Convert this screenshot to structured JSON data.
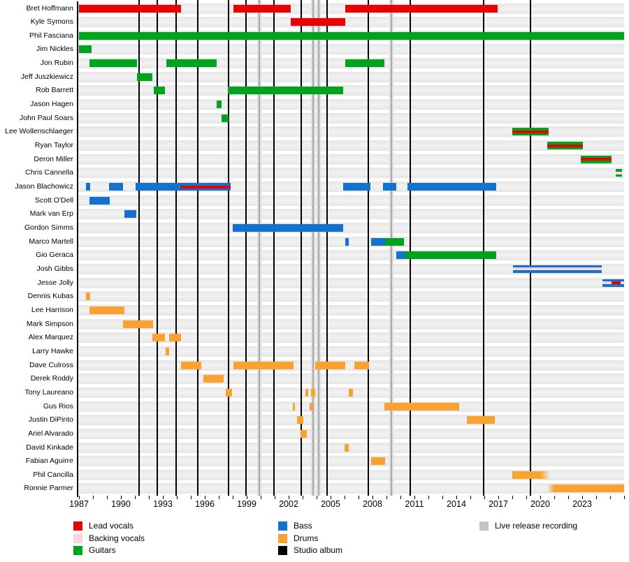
{
  "chart_data": {
    "type": "timeline",
    "description": "Band line-up timeline: rows are members, colored bars are active periods per role, vertical lines mark releases",
    "x_axis": {
      "min": 1987,
      "max": 2026,
      "tick_step": 1,
      "labels": [
        "1987",
        "1990",
        "1993",
        "1996",
        "1999",
        "2002",
        "2005",
        "2008",
        "2011",
        "2014",
        "2017",
        "2020",
        "2023"
      ],
      "label_years": [
        1987,
        1990,
        1993,
        1996,
        1999,
        2002,
        2005,
        2008,
        2011,
        2014,
        2017,
        2020,
        2023
      ]
    },
    "colors": {
      "lead_vocals": "#ea0000",
      "backing_vocals": "#f7d5da",
      "guitars": "#00a41c",
      "bass": "#1371cf",
      "drums": "#f9a231",
      "studio_album": "#000000",
      "live_release": "#c5c5c5",
      "row_stripe": "#ebebeb"
    },
    "studio_album_lines": [
      1991.3,
      1992.6,
      1993.95,
      1995.5,
      1997.7,
      1998.95,
      2000.95,
      2002.9,
      2004.75,
      2007.7,
      2010.7,
      2015.95,
      2019.3
    ],
    "live_release_lines": [
      1999.9,
      2003.75,
      2004.15,
      2009.35
    ],
    "members": [
      {
        "name": "Bret Hoffmann",
        "bars": [
          {
            "role": "lead_vocals",
            "start": 1987.0,
            "end": 1994.3
          },
          {
            "role": "lead_vocals",
            "start": 1998.05,
            "end": 2002.15
          },
          {
            "role": "lead_vocals",
            "start": 2006.05,
            "end": 2016.95
          }
        ]
      },
      {
        "name": "Kyle Symons",
        "bars": [
          {
            "role": "lead_vocals",
            "start": 2002.15,
            "end": 2006.05
          }
        ]
      },
      {
        "name": "Phil Fasciana",
        "bars": [
          {
            "role": "guitars",
            "start": 1987.0,
            "end": 2026.0
          }
        ]
      },
      {
        "name": "Jim Nickles",
        "bars": [
          {
            "role": "guitars",
            "start": 1987.0,
            "end": 1987.9
          }
        ]
      },
      {
        "name": "Jon Rubin",
        "bars": [
          {
            "role": "guitars",
            "start": 1987.75,
            "end": 1991.15
          },
          {
            "role": "guitars",
            "start": 1993.25,
            "end": 1996.85
          },
          {
            "role": "guitars",
            "start": 2006.05,
            "end": 2008.85
          }
        ]
      },
      {
        "name": "Jeff Juszkiewicz",
        "bars": [
          {
            "role": "guitars",
            "start": 1991.15,
            "end": 1992.25
          }
        ]
      },
      {
        "name": "Rob Barrett",
        "bars": [
          {
            "role": "guitars",
            "start": 1992.35,
            "end": 1993.15
          },
          {
            "role": "guitars",
            "start": 1997.65,
            "end": 2005.9
          }
        ]
      },
      {
        "name": "Jason Hagen",
        "bars": [
          {
            "role": "guitars",
            "start": 1996.85,
            "end": 1997.2
          }
        ]
      },
      {
        "name": "John Paul Soars",
        "bars": [
          {
            "role": "guitars",
            "start": 1997.2,
            "end": 1997.7
          }
        ]
      },
      {
        "name": "Lee Wollenschlaeger",
        "bars": [
          {
            "role": "guitars",
            "stripe": "lead_vocals",
            "start": 2018.0,
            "end": 2020.6
          }
        ]
      },
      {
        "name": "Ryan Taylor",
        "bars": [
          {
            "role": "guitars",
            "stripe": "lead_vocals",
            "start": 2020.5,
            "end": 2023.05
          }
        ]
      },
      {
        "name": "Deron Miller",
        "bars": [
          {
            "role": "guitars",
            "stripe": "lead_vocals",
            "start": 2022.9,
            "end": 2025.1
          }
        ]
      },
      {
        "name": "Chris Cannella",
        "bars": [
          {
            "role": "guitars",
            "stripe": "backing_vocals",
            "start": 2025.4,
            "end": 2025.85
          }
        ]
      },
      {
        "name": "Jason Blachowicz",
        "bars": [
          {
            "role": "bass",
            "start": 1987.5,
            "end": 1987.8
          },
          {
            "role": "bass",
            "start": 1989.15,
            "end": 1990.15
          },
          {
            "role": "bass",
            "stripe": "lead_vocals",
            "stripe_start": 1994.25,
            "stripe_end": 1997.85,
            "start": 1991.05,
            "end": 1997.85
          },
          {
            "role": "bass",
            "start": 2005.9,
            "end": 2007.85
          },
          {
            "role": "bass",
            "start": 2008.75,
            "end": 2009.7
          },
          {
            "role": "bass",
            "start": 2010.5,
            "end": 2016.85
          }
        ]
      },
      {
        "name": "Scott O'Dell",
        "bars": [
          {
            "role": "bass",
            "start": 1987.75,
            "end": 1989.2
          }
        ]
      },
      {
        "name": "Mark van Erp",
        "bars": [
          {
            "role": "bass",
            "start": 1990.25,
            "end": 1991.1
          }
        ]
      },
      {
        "name": "Gordon Simms",
        "bars": [
          {
            "role": "bass",
            "start": 1998.0,
            "end": 2005.9
          }
        ]
      },
      {
        "name": "Marco Martell",
        "bars": [
          {
            "role": "bass",
            "start": 2006.05,
            "end": 2006.3
          },
          {
            "role": "bass",
            "start": 2007.9,
            "end": 2008.9
          },
          {
            "role": "guitars",
            "start": 2008.9,
            "end": 2010.25
          }
        ]
      },
      {
        "name": "Gio Geraca",
        "bars": [
          {
            "role": "bass",
            "start": 2009.7,
            "end": 2010.35
          },
          {
            "role": "guitars",
            "start": 2010.35,
            "end": 2016.85
          }
        ]
      },
      {
        "name": "Josh Gibbs",
        "bars": [
          {
            "role": "bass",
            "stripe": "backing_vocals",
            "start": 2018.05,
            "end": 2024.4
          }
        ]
      },
      {
        "name": "Jesse Jolly",
        "bars": [
          {
            "role": "bass",
            "stripe": "backing_vocals",
            "stripe2": "lead_vocals",
            "stripe2_start": 2025.1,
            "stripe2_end": 2025.75,
            "start": 2024.45,
            "end": 2026.0
          }
        ]
      },
      {
        "name": "Dennis Kubas",
        "bars": [
          {
            "role": "drums",
            "start": 1987.5,
            "end": 1987.8
          }
        ]
      },
      {
        "name": "Lee Harrison",
        "bars": [
          {
            "role": "drums",
            "start": 1987.75,
            "end": 1990.25
          }
        ]
      },
      {
        "name": "Mark Simpson",
        "bars": [
          {
            "role": "drums",
            "start": 1990.15,
            "end": 1992.3
          }
        ]
      },
      {
        "name": "Alex Marquez",
        "bars": [
          {
            "role": "drums",
            "start": 1992.25,
            "end": 1993.15
          },
          {
            "role": "drums",
            "start": 1993.45,
            "end": 1994.3
          }
        ]
      },
      {
        "name": "Larry Hawke",
        "bars": [
          {
            "role": "drums",
            "start": 1993.2,
            "end": 1993.45
          }
        ]
      },
      {
        "name": "Dave Culross",
        "bars": [
          {
            "role": "drums",
            "start": 1994.3,
            "end": 1995.75
          },
          {
            "role": "drums",
            "start": 1998.05,
            "end": 2002.35
          },
          {
            "role": "drums",
            "start": 2003.9,
            "end": 2006.05
          },
          {
            "role": "drums",
            "start": 2006.7,
            "end": 2007.75
          }
        ]
      },
      {
        "name": "Derek Roddy",
        "bars": [
          {
            "role": "drums",
            "start": 1995.9,
            "end": 1997.35
          }
        ]
      },
      {
        "name": "Tony Laureano",
        "bars": [
          {
            "role": "drums",
            "start": 1997.5,
            "end": 1997.95
          },
          {
            "role": "drums",
            "start": 2003.2,
            "end": 2003.4
          },
          {
            "role": "drums",
            "start": 2003.6,
            "end": 2003.9
          },
          {
            "role": "drums",
            "start": 2006.3,
            "end": 2006.6
          }
        ]
      },
      {
        "name": "Gus Rios",
        "bars": [
          {
            "role": "drums",
            "start": 2002.3,
            "end": 2002.45
          },
          {
            "role": "drums",
            "start": 2003.5,
            "end": 2003.7
          },
          {
            "role": "drums",
            "start": 2008.85,
            "end": 2014.2
          }
        ]
      },
      {
        "name": "Justin DiPinto",
        "bars": [
          {
            "role": "drums",
            "start": 2002.6,
            "end": 2003.05
          },
          {
            "role": "drums",
            "start": 2014.75,
            "end": 2016.75
          }
        ]
      },
      {
        "name": "Ariel Alvarado",
        "bars": [
          {
            "role": "drums",
            "start": 2002.85,
            "end": 2003.3
          }
        ]
      },
      {
        "name": "David Kinkade",
        "bars": [
          {
            "role": "drums",
            "start": 2006.0,
            "end": 2006.3
          }
        ]
      },
      {
        "name": "Fabian Aguirre",
        "bars": [
          {
            "role": "drums",
            "start": 2007.9,
            "end": 2008.9
          }
        ]
      },
      {
        "name": "Phil Cancilla",
        "bars": [
          {
            "role": "drums",
            "start": 2018.0,
            "end": 2020.7,
            "fade": "right"
          }
        ]
      },
      {
        "name": "Ronnie Parmer",
        "bars": [
          {
            "role": "drums",
            "start": 2020.5,
            "end": 2026.0,
            "fade": "left"
          }
        ]
      }
    ],
    "legend": {
      "columns": [
        [
          {
            "swatch": "lead_vocals",
            "label": "Lead vocals"
          },
          {
            "swatch": "backing_vocals",
            "label": "Backing vocals"
          },
          {
            "swatch": "guitars",
            "label": "Guitars"
          }
        ],
        [
          {
            "swatch": "bass",
            "label": "Bass"
          },
          {
            "swatch": "drums",
            "label": "Drums"
          },
          {
            "swatch": "studio_album",
            "label": "Studio album"
          }
        ],
        [
          {
            "swatch": "live_release",
            "label": "Live release recording"
          }
        ]
      ]
    }
  }
}
